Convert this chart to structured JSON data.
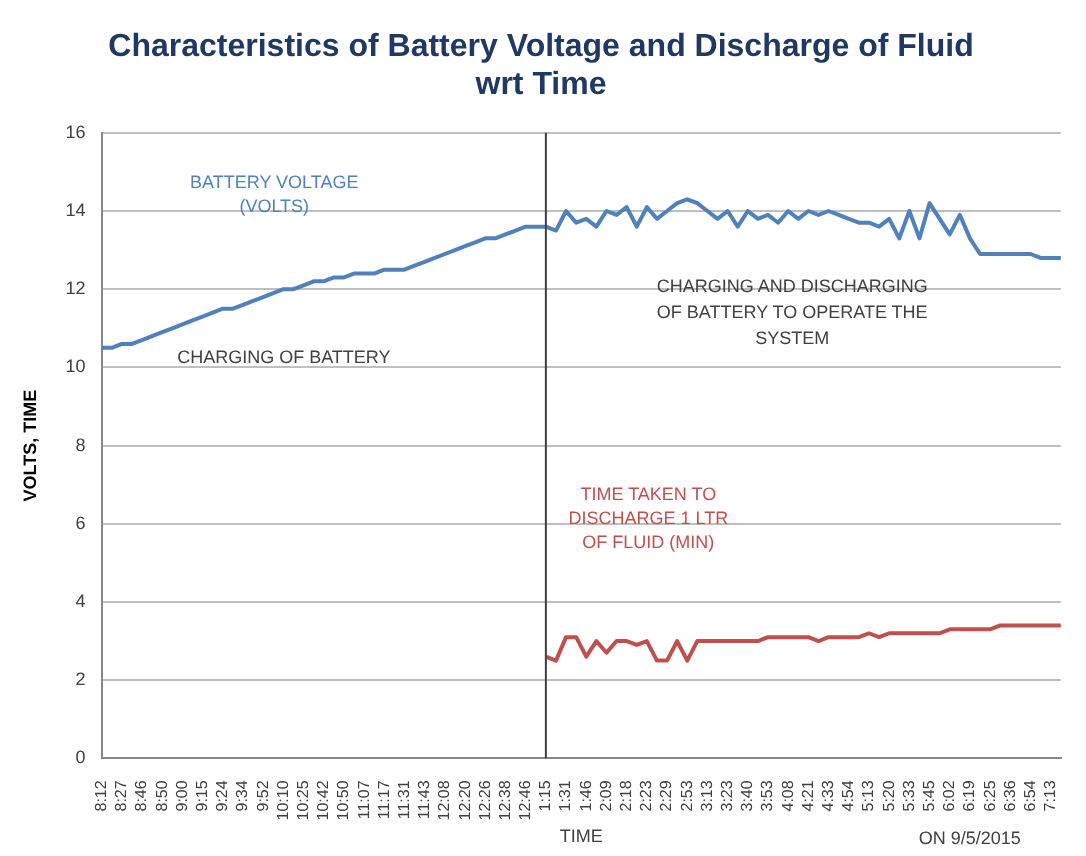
{
  "chart_data": {
    "type": "line",
    "title": "Characteristics of Battery Voltage and Discharge of Fluid wrt Time",
    "xlabel": "TIME",
    "ylabel": "VOLTS, TIME",
    "categories": [
      "8:12",
      null,
      "8:27",
      null,
      "8:46",
      null,
      "8:50",
      null,
      "9:00",
      null,
      "9:15",
      null,
      "9:24",
      null,
      "9:34",
      null,
      "9:52",
      null,
      "10:10",
      null,
      "10:25",
      null,
      "10:42",
      null,
      "10:50",
      null,
      "11:07",
      null,
      "11:17",
      null,
      "11:31",
      null,
      "11:43",
      null,
      "12:08",
      null,
      "12:20",
      null,
      "12:26",
      null,
      "12:38",
      null,
      "12:46",
      null,
      "1:15",
      null,
      "1:31",
      null,
      "1:46",
      null,
      "2:09",
      null,
      "2:18",
      null,
      "2:23",
      null,
      "2:29",
      null,
      "2:53",
      null,
      "3:13",
      null,
      "3:23",
      null,
      "3:40",
      null,
      "3:53",
      null,
      "4:08",
      null,
      "4:21",
      null,
      "4:33",
      null,
      "4:54",
      null,
      "5:13",
      null,
      "5:20",
      null,
      "5:33",
      null,
      "5:45",
      null,
      "6:02",
      null,
      "6:19",
      null,
      "6:25",
      null,
      "6:36",
      null,
      "6:54",
      null,
      "7:13",
      null
    ],
    "series": [
      {
        "name": "BATTERY VOLTAGE (VOLTS)",
        "color": "#4f81bd",
        "values": [
          10.5,
          10.5,
          10.6,
          10.6,
          10.7,
          10.8,
          10.9,
          11.0,
          11.1,
          11.2,
          11.3,
          11.4,
          11.5,
          11.5,
          11.6,
          11.7,
          11.8,
          11.9,
          12.0,
          12.0,
          12.1,
          12.2,
          12.2,
          12.3,
          12.3,
          12.4,
          12.4,
          12.4,
          12.5,
          12.5,
          12.5,
          12.6,
          12.7,
          12.8,
          12.9,
          13.0,
          13.1,
          13.2,
          13.3,
          13.3,
          13.4,
          13.5,
          13.6,
          13.6,
          13.6,
          13.5,
          14.0,
          13.7,
          13.8,
          13.6,
          14.0,
          13.9,
          14.1,
          13.6,
          14.1,
          13.8,
          14.0,
          14.2,
          14.3,
          14.2,
          14.0,
          13.8,
          14.0,
          13.6,
          14.0,
          13.8,
          13.9,
          13.7,
          14.0,
          13.8,
          14.0,
          13.9,
          14.0,
          13.9,
          13.8,
          13.7,
          13.7,
          13.6,
          13.8,
          13.3,
          14.0,
          13.3,
          14.2,
          13.8,
          13.4,
          13.9,
          13.3,
          12.9,
          12.9,
          12.9,
          12.9,
          12.9,
          12.9,
          12.8,
          12.8,
          12.8
        ]
      },
      {
        "name": "TIME TAKEN TO DISCHARGE 1 LTR OF FLUID (MIN)",
        "color": "#c0504d",
        "values": [
          null,
          null,
          null,
          null,
          null,
          null,
          null,
          null,
          null,
          null,
          null,
          null,
          null,
          null,
          null,
          null,
          null,
          null,
          null,
          null,
          null,
          null,
          null,
          null,
          null,
          null,
          null,
          null,
          null,
          null,
          null,
          null,
          null,
          null,
          null,
          null,
          null,
          null,
          null,
          null,
          null,
          null,
          null,
          null,
          2.6,
          2.5,
          3.1,
          3.1,
          2.6,
          3.0,
          2.7,
          3.0,
          3.0,
          2.9,
          3.0,
          2.5,
          2.5,
          3.0,
          2.5,
          3.0,
          3.0,
          3.0,
          3.0,
          3.0,
          3.0,
          3.0,
          3.1,
          3.1,
          3.1,
          3.1,
          3.1,
          3.0,
          3.1,
          3.1,
          3.1,
          3.1,
          3.2,
          3.1,
          3.2,
          3.2,
          3.2,
          3.2,
          3.2,
          3.2,
          3.3,
          3.3,
          3.3,
          3.3,
          3.3,
          3.4,
          3.4,
          3.4,
          3.4,
          3.4,
          3.4,
          3.4
        ]
      }
    ],
    "ylim": [
      0,
      16
    ],
    "yticks": [
      0,
      2,
      4,
      6,
      8,
      10,
      12,
      14,
      16
    ],
    "grid": "y",
    "legend": false,
    "marker": "none",
    "line_style": "solid",
    "ref_lines": [
      {
        "axis": "x",
        "value": "1:15",
        "color": "#404040"
      }
    ],
    "annotations": [
      "CHARGING OF BATTERY",
      "CHARGING AND DISCHARGING OF BATTERY TO OPERATE THE SYSTEM",
      "ON 9/5/2015"
    ]
  }
}
